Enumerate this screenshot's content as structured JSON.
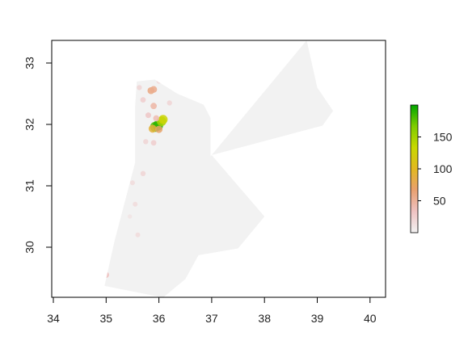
{
  "chart_data": {
    "type": "heatmap",
    "title": "",
    "xlabel": "",
    "ylabel": "",
    "xlim": [
      34,
      40.3
    ],
    "ylim": [
      29.2,
      33.4
    ],
    "x_ticks": [
      {
        "value": 34,
        "label": "34"
      },
      {
        "value": 35,
        "label": "35"
      },
      {
        "value": 36,
        "label": "36"
      },
      {
        "value": 37,
        "label": "37"
      },
      {
        "value": 38,
        "label": "38"
      },
      {
        "value": 39,
        "label": "39"
      },
      {
        "value": 40,
        "label": "40"
      }
    ],
    "y_ticks": [
      {
        "value": 30,
        "label": "30"
      },
      {
        "value": 31,
        "label": "31"
      },
      {
        "value": 32,
        "label": "32"
      },
      {
        "value": 33,
        "label": "33"
      }
    ],
    "legend": {
      "placement": "right",
      "min": 0,
      "max": 200,
      "ticks": [
        {
          "value": 50,
          "label": "50"
        },
        {
          "value": 100,
          "label": "100"
        },
        {
          "value": 150,
          "label": "150"
        }
      ],
      "colors": [
        "#f2f2f2",
        "#efc2c2",
        "#e9a070",
        "#e2b820",
        "#c8d800",
        "#7fcc00",
        "#00a600"
      ]
    },
    "background_fill": "#f2f2f2",
    "region_outline": [
      [
        36.98,
        31.48
      ],
      [
        38.8,
        33.37
      ],
      [
        39.0,
        32.6
      ],
      [
        39.3,
        32.22
      ],
      [
        39.1,
        31.98
      ],
      [
        37.0,
        31.5
      ],
      [
        38.0,
        30.5
      ],
      [
        37.5,
        29.98
      ],
      [
        36.75,
        29.87
      ],
      [
        36.5,
        29.48
      ],
      [
        36.08,
        29.18
      ],
      [
        34.97,
        29.37
      ],
      [
        35.16,
        30.1
      ],
      [
        35.55,
        31.38
      ],
      [
        35.55,
        32.3
      ],
      [
        35.58,
        32.7
      ],
      [
        35.92,
        32.73
      ],
      [
        36.35,
        32.5
      ],
      [
        36.85,
        32.32
      ],
      [
        36.98,
        32.1
      ]
    ],
    "hotspots": [
      {
        "lon": 35.93,
        "lat": 31.96,
        "value": 180
      },
      {
        "lon": 35.98,
        "lat": 31.98,
        "value": 190
      },
      {
        "lon": 36.05,
        "lat": 32.05,
        "value": 150
      },
      {
        "lon": 36.08,
        "lat": 32.08,
        "value": 130
      },
      {
        "lon": 35.88,
        "lat": 31.93,
        "value": 90
      },
      {
        "lon": 36.0,
        "lat": 31.92,
        "value": 70
      },
      {
        "lon": 35.85,
        "lat": 32.55,
        "value": 60
      },
      {
        "lon": 35.9,
        "lat": 32.57,
        "value": 55
      },
      {
        "lon": 35.9,
        "lat": 32.3,
        "value": 45
      },
      {
        "lon": 35.95,
        "lat": 32.1,
        "value": 40
      },
      {
        "lon": 35.8,
        "lat": 32.15,
        "value": 30
      },
      {
        "lon": 35.7,
        "lat": 32.4,
        "value": 25
      },
      {
        "lon": 36.2,
        "lat": 32.35,
        "value": 20
      },
      {
        "lon": 35.9,
        "lat": 31.7,
        "value": 25
      },
      {
        "lon": 35.75,
        "lat": 31.72,
        "value": 20
      },
      {
        "lon": 35.7,
        "lat": 31.2,
        "value": 20
      },
      {
        "lon": 35.55,
        "lat": 30.7,
        "value": 15
      },
      {
        "lon": 35.6,
        "lat": 30.2,
        "value": 15
      },
      {
        "lon": 35.0,
        "lat": 29.55,
        "value": 35
      },
      {
        "lon": 35.63,
        "lat": 32.6,
        "value": 20
      },
      {
        "lon": 36.0,
        "lat": 32.7,
        "value": 15
      },
      {
        "lon": 35.5,
        "lat": 31.05,
        "value": 15
      },
      {
        "lon": 35.45,
        "lat": 30.5,
        "value": 10
      }
    ]
  }
}
